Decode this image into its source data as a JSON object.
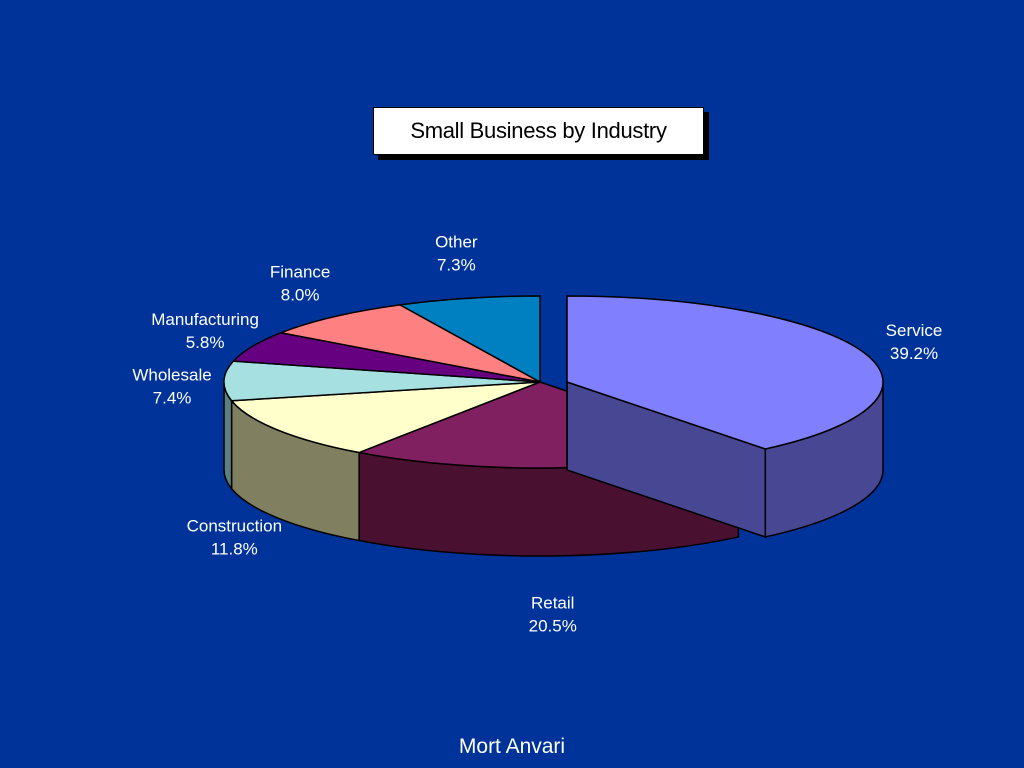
{
  "footer": {
    "author": "Mort Anvari"
  },
  "colors": {
    "background": "#003399",
    "label_text": "#ffffff",
    "edge": "#000000"
  },
  "chart_data": {
    "type": "pie",
    "title": "Small Business by Industry",
    "style": "3d-exploded",
    "legend": "none",
    "slices": [
      {
        "label": "Service",
        "value": 39.2,
        "value_label": "39.2%",
        "color": "#8080ff",
        "side_color": "#474793",
        "exploded": true
      },
      {
        "label": "Retail",
        "value": 20.5,
        "value_label": "20.5%",
        "color": "#802060",
        "side_color": "#4a1030",
        "exploded": false
      },
      {
        "label": "Construction",
        "value": 11.8,
        "value_label": "11.8%",
        "color": "#ffffcc",
        "side_color": "#808060",
        "exploded": false
      },
      {
        "label": "Wholesale",
        "value": 7.4,
        "value_label": "7.4%",
        "color": "#a6e0e0",
        "side_color": "#5a8080",
        "exploded": false
      },
      {
        "label": "Manufacturing",
        "value": 5.8,
        "value_label": "5.8%",
        "color": "#660080",
        "side_color": "#33004a",
        "exploded": false
      },
      {
        "label": "Finance",
        "value": 8.0,
        "value_label": "8.0%",
        "color": "#ff8080",
        "side_color": "#993333",
        "exploded": false
      },
      {
        "label": "Other",
        "value": 7.3,
        "value_label": "7.3%",
        "color": "#0080c0",
        "side_color": "#004a70",
        "exploded": false
      }
    ]
  }
}
